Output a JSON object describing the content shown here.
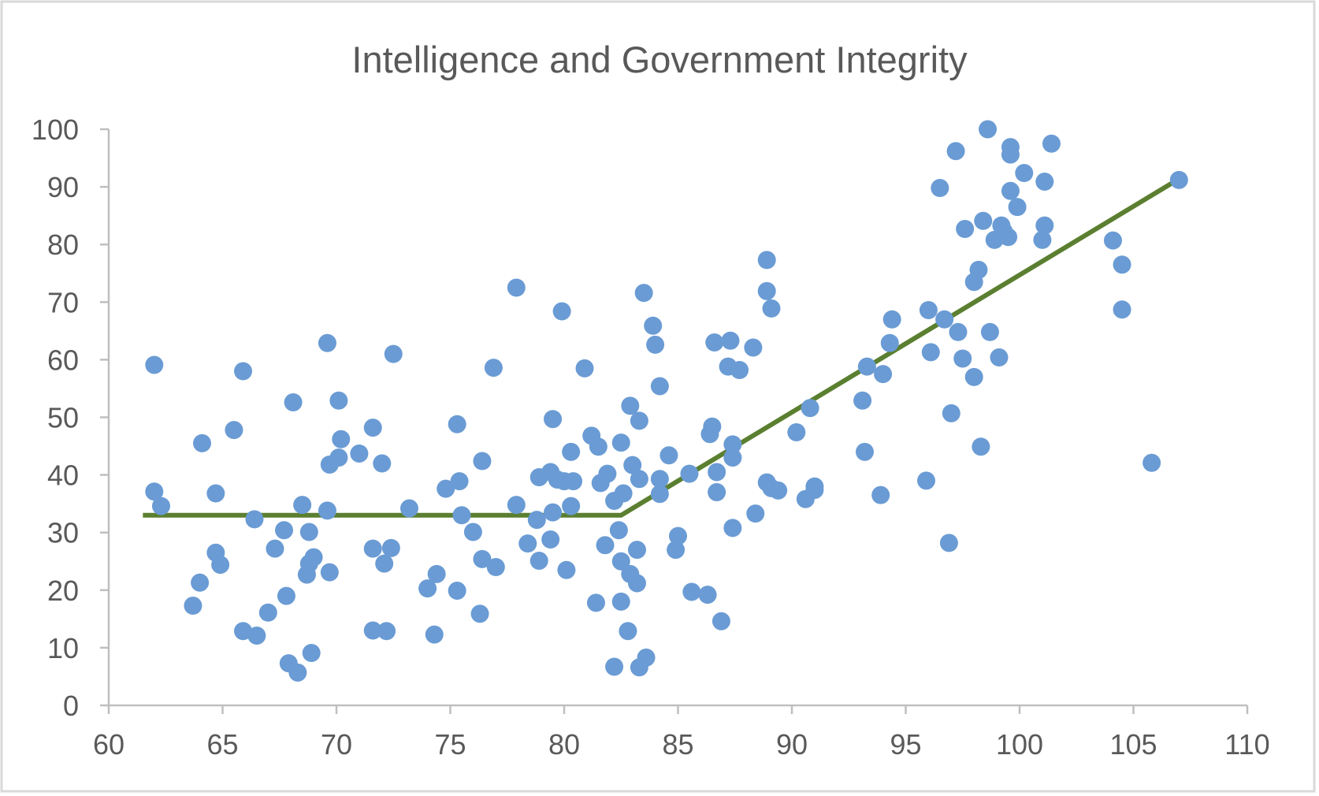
{
  "chart_data": {
    "type": "scatter",
    "title": "Intelligence and Government Integrity",
    "xlabel": "",
    "ylabel": "",
    "xlim": [
      60,
      110
    ],
    "ylim": [
      0,
      100
    ],
    "xticks": [
      60,
      65,
      70,
      75,
      80,
      85,
      90,
      95,
      100,
      105,
      110
    ],
    "yticks": [
      0,
      10,
      20,
      30,
      40,
      50,
      60,
      70,
      80,
      90,
      100
    ],
    "grid": false,
    "legend": "none",
    "colors": {
      "points": "#6a9bd4",
      "trend": "#5b7f30",
      "axis": "#bfbfbf",
      "text": "#595959"
    },
    "points": [
      [
        62.0,
        59.1
      ],
      [
        62.0,
        37.1
      ],
      [
        62.3,
        34.6
      ],
      [
        63.7,
        17.3
      ],
      [
        64.0,
        21.3
      ],
      [
        64.1,
        45.5
      ],
      [
        64.7,
        36.8
      ],
      [
        64.7,
        26.5
      ],
      [
        64.9,
        24.4
      ],
      [
        65.5,
        47.8
      ],
      [
        65.9,
        58.0
      ],
      [
        65.9,
        12.9
      ],
      [
        66.4,
        32.3
      ],
      [
        66.5,
        12.1
      ],
      [
        67.0,
        16.1
      ],
      [
        67.3,
        27.2
      ],
      [
        67.7,
        30.4
      ],
      [
        67.8,
        19.0
      ],
      [
        67.9,
        7.3
      ],
      [
        68.1,
        52.6
      ],
      [
        68.3,
        5.7
      ],
      [
        68.5,
        34.8
      ],
      [
        68.7,
        22.7
      ],
      [
        68.8,
        30.1
      ],
      [
        68.8,
        24.6
      ],
      [
        69.0,
        25.7
      ],
      [
        68.9,
        9.1
      ],
      [
        69.6,
        62.9
      ],
      [
        69.6,
        33.8
      ],
      [
        69.7,
        23.1
      ],
      [
        69.7,
        41.8
      ],
      [
        70.1,
        43.0
      ],
      [
        70.2,
        46.2
      ],
      [
        70.1,
        52.9
      ],
      [
        71.0,
        43.7
      ],
      [
        71.6,
        48.2
      ],
      [
        71.6,
        27.2
      ],
      [
        71.6,
        13.0
      ],
      [
        72.0,
        42.0
      ],
      [
        72.1,
        24.6
      ],
      [
        72.2,
        12.9
      ],
      [
        72.4,
        27.3
      ],
      [
        72.5,
        61.0
      ],
      [
        73.2,
        34.2
      ],
      [
        74.0,
        20.3
      ],
      [
        74.3,
        12.3
      ],
      [
        74.4,
        22.8
      ],
      [
        74.8,
        37.6
      ],
      [
        75.3,
        19.9
      ],
      [
        75.3,
        48.8
      ],
      [
        75.4,
        38.9
      ],
      [
        75.5,
        33.0
      ],
      [
        76.0,
        30.1
      ],
      [
        76.3,
        15.9
      ],
      [
        76.4,
        42.4
      ],
      [
        76.4,
        25.4
      ],
      [
        76.9,
        58.6
      ],
      [
        77.0,
        24.0
      ],
      [
        77.9,
        72.5
      ],
      [
        77.9,
        34.8
      ],
      [
        78.4,
        28.1
      ],
      [
        78.8,
        32.2
      ],
      [
        78.9,
        39.6
      ],
      [
        78.9,
        25.1
      ],
      [
        79.4,
        40.5
      ],
      [
        79.4,
        28.8
      ],
      [
        79.5,
        49.7
      ],
      [
        79.5,
        33.5
      ],
      [
        79.7,
        39.2
      ],
      [
        79.9,
        68.4
      ],
      [
        80.0,
        38.9
      ],
      [
        80.1,
        23.5
      ],
      [
        80.3,
        44.0
      ],
      [
        80.3,
        34.6
      ],
      [
        80.4,
        38.9
      ],
      [
        80.9,
        58.5
      ],
      [
        81.2,
        46.8
      ],
      [
        81.4,
        17.8
      ],
      [
        81.5,
        44.9
      ],
      [
        81.6,
        38.6
      ],
      [
        81.8,
        27.8
      ],
      [
        81.9,
        40.2
      ],
      [
        82.2,
        6.7
      ],
      [
        82.2,
        35.5
      ],
      [
        82.4,
        30.4
      ],
      [
        82.5,
        45.6
      ],
      [
        82.5,
        25.0
      ],
      [
        82.5,
        18.0
      ],
      [
        82.6,
        36.8
      ],
      [
        82.8,
        12.9
      ],
      [
        82.9,
        22.8
      ],
      [
        82.9,
        52.0
      ],
      [
        83.0,
        41.7
      ],
      [
        83.2,
        27.0
      ],
      [
        83.2,
        21.2
      ],
      [
        83.3,
        6.6
      ],
      [
        83.3,
        49.4
      ],
      [
        83.3,
        39.3
      ],
      [
        83.5,
        71.6
      ],
      [
        83.6,
        8.3
      ],
      [
        83.9,
        65.9
      ],
      [
        84.0,
        62.6
      ],
      [
        84.2,
        55.4
      ],
      [
        84.2,
        39.3
      ],
      [
        84.2,
        36.7
      ],
      [
        84.6,
        43.4
      ],
      [
        84.9,
        27.0
      ],
      [
        85.0,
        29.4
      ],
      [
        85.5,
        40.2
      ],
      [
        85.6,
        19.7
      ],
      [
        86.3,
        19.2
      ],
      [
        86.4,
        47.1
      ],
      [
        86.5,
        48.4
      ],
      [
        86.6,
        63.0
      ],
      [
        86.7,
        40.5
      ],
      [
        86.7,
        37.0
      ],
      [
        86.9,
        14.6
      ],
      [
        87.2,
        58.8
      ],
      [
        87.3,
        63.3
      ],
      [
        87.4,
        30.8
      ],
      [
        87.4,
        45.3
      ],
      [
        87.4,
        43.0
      ],
      [
        87.7,
        58.2
      ],
      [
        88.3,
        62.1
      ],
      [
        88.4,
        33.3
      ],
      [
        88.9,
        77.3
      ],
      [
        88.9,
        71.9
      ],
      [
        88.9,
        38.7
      ],
      [
        89.1,
        68.9
      ],
      [
        89.1,
        37.7
      ],
      [
        89.4,
        37.3
      ],
      [
        90.2,
        47.4
      ],
      [
        90.6,
        35.8
      ],
      [
        90.8,
        51.6
      ],
      [
        91.0,
        37.4
      ],
      [
        91.0,
        38.0
      ],
      [
        93.1,
        52.9
      ],
      [
        93.2,
        44.0
      ],
      [
        93.3,
        58.8
      ],
      [
        93.9,
        36.5
      ],
      [
        94.0,
        57.5
      ],
      [
        94.3,
        62.9
      ],
      [
        94.4,
        67.0
      ],
      [
        95.9,
        39.0
      ],
      [
        96.0,
        68.6
      ],
      [
        96.1,
        61.3
      ],
      [
        96.5,
        89.8
      ],
      [
        96.7,
        67.0
      ],
      [
        96.9,
        28.2
      ],
      [
        97.0,
        50.7
      ],
      [
        97.2,
        96.2
      ],
      [
        97.3,
        64.8
      ],
      [
        97.5,
        60.2
      ],
      [
        97.6,
        82.7
      ],
      [
        98.0,
        57.0
      ],
      [
        98.0,
        73.5
      ],
      [
        98.2,
        75.6
      ],
      [
        98.3,
        44.9
      ],
      [
        98.4,
        84.1
      ],
      [
        98.6,
        100.0
      ],
      [
        98.7,
        64.8
      ],
      [
        98.9,
        80.8
      ],
      [
        99.1,
        60.4
      ],
      [
        99.2,
        83.3
      ],
      [
        99.3,
        82.3
      ],
      [
        99.5,
        81.3
      ],
      [
        99.6,
        89.3
      ],
      [
        99.6,
        96.9
      ],
      [
        99.6,
        95.6
      ],
      [
        99.9,
        86.5
      ],
      [
        100.2,
        92.4
      ],
      [
        101.0,
        80.8
      ],
      [
        101.1,
        83.3
      ],
      [
        101.1,
        90.9
      ],
      [
        101.4,
        97.5
      ],
      [
        104.1,
        80.7
      ],
      [
        104.5,
        76.5
      ],
      [
        104.5,
        68.7
      ],
      [
        105.8,
        42.1
      ],
      [
        107.0,
        91.2
      ]
    ],
    "trendline": [
      [
        61.5,
        33.0
      ],
      [
        82.5,
        33.0
      ],
      [
        107.3,
        92.1
      ]
    ]
  }
}
